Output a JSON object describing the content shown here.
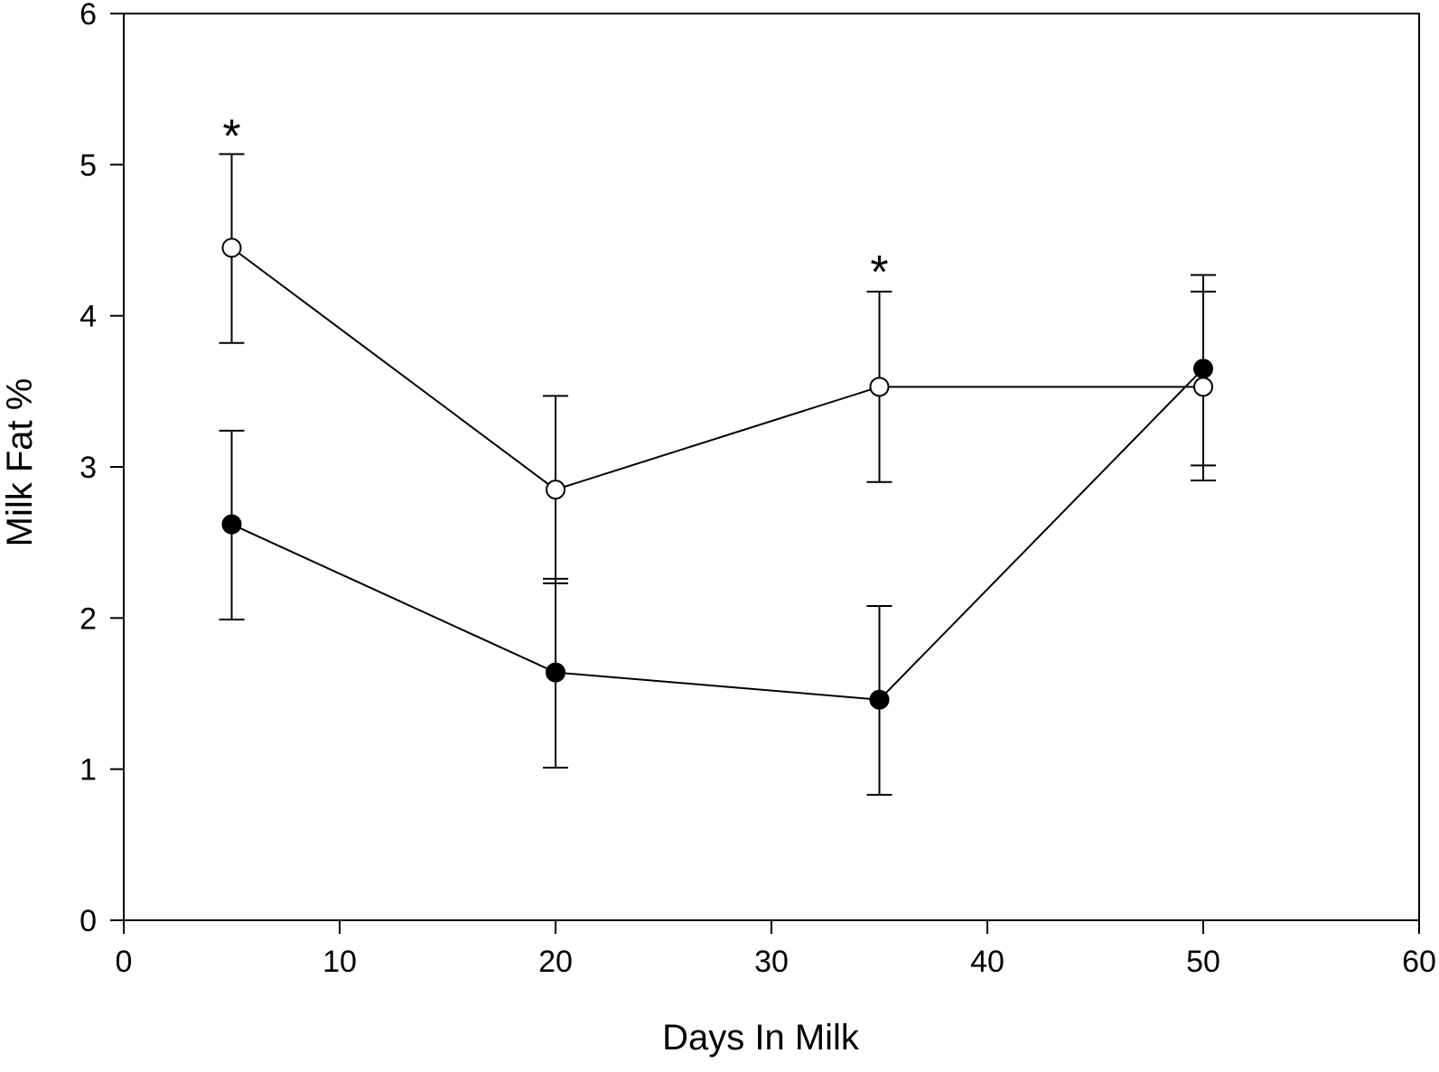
{
  "chart_data": {
    "type": "line",
    "xlabel": "Days In Milk",
    "ylabel": "Milk Fat %",
    "xlim": [
      0,
      60
    ],
    "ylim": [
      0,
      6
    ],
    "xticks": [
      "0",
      "10",
      "20",
      "30",
      "40",
      "50",
      "60"
    ],
    "yticks": [
      "0",
      "1",
      "2",
      "3",
      "4",
      "5",
      "6"
    ],
    "grid": false,
    "legend": "none",
    "series": [
      {
        "marker": "open-circle",
        "x": [
          5,
          20,
          35,
          50
        ],
        "y": [
          4.45,
          2.85,
          3.53,
          3.53
        ],
        "error_low": [
          3.82,
          2.23,
          2.9,
          3.01
        ],
        "error_high": [
          5.07,
          3.47,
          4.16,
          4.16
        ]
      },
      {
        "marker": "filled-circle",
        "x": [
          5,
          20,
          35,
          50
        ],
        "y": [
          2.62,
          1.64,
          1.46,
          3.65
        ],
        "error_low": [
          1.99,
          1.01,
          0.83,
          2.91
        ],
        "error_high": [
          3.24,
          2.26,
          2.08,
          4.27
        ]
      }
    ],
    "annotations": [
      {
        "text": "*",
        "x": 5,
        "y": 5.25
      },
      {
        "text": "*",
        "x": 35,
        "y": 4.35
      }
    ]
  }
}
